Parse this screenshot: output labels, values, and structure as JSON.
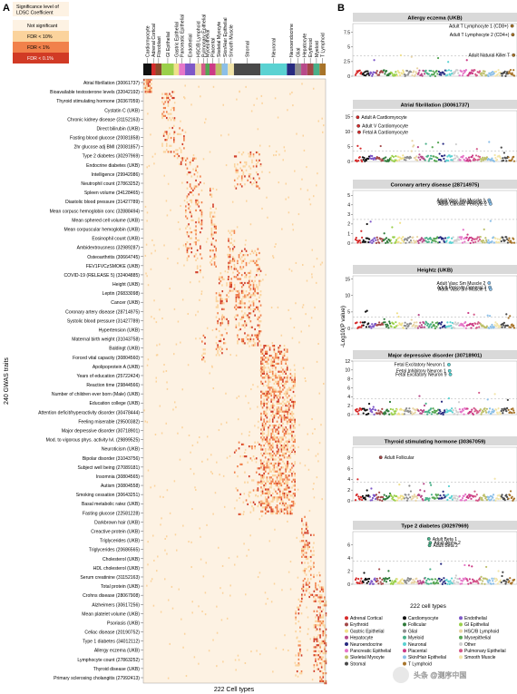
{
  "panel_a_label": "A",
  "panel_b_label": "B",
  "legend": {
    "title": [
      "Significance level of",
      "LDSC Coefficient"
    ],
    "items": [
      {
        "label": "Not significant",
        "color": "#fdf2e3"
      },
      {
        "label": "FDR < 10%",
        "color": "#fbd39c"
      },
      {
        "label": "FDR < 1%",
        "color": "#f1814b"
      },
      {
        "label": "FDR < 0.1%",
        "color": "#d13a25"
      }
    ]
  },
  "heatmap": {
    "ylabel": "240 GWAS traits",
    "xlabel": "222 Cell types",
    "traits": [
      "Atrial fibrillation (30061737)",
      "Bioavailable testosterone levels (32042192)",
      "Thyroid stimulating hormone (30367059)",
      "Cystatin C (UKB)",
      "Chronic kidney disease (31152163)",
      "Direct bilirubin (UKB)",
      "Fasting blood glucose (20081858)",
      "2hr glucose adj BMI (20081857)",
      "Type 2 diabetes (30297969)",
      "Endocrine diabetes (UKB)",
      "Intelligence (29942086)",
      "Neutrophil count (27863252)",
      "Spleen volume (34128465)",
      "Diastolic blood pressure (31427789)",
      "Mean corpusc hemoglobin conc (32888494)",
      "Mean sphered cell volume (UKB)",
      "Mean corpuscular hemoglobin (UKB)",
      "Eosinophil count (UKB)",
      "Ambidextrousness (32989287)",
      "Osteoarthritis (30664745)",
      "FEV1FVCzSMOKE (UKB)",
      "COVID-19 (RELEASE 5) (32404885)",
      "Height (UKB)",
      "Leptin (26833098)",
      "Cancer (UKB)",
      "Coronary artery disease (28714975)",
      "Systolic blood pressure (31427789)",
      "Hypertension (UKB)",
      "Maternal birth weight (31043758)",
      "Baldingt (UKB)",
      "Forced vital capacity (30804560)",
      "Apolipoprotein A (UKB)",
      "Years of education (25722424)",
      "Reaction time (29844566)",
      "Number of children ever born (Male) (UKB)",
      "Education college (UKB)",
      "Attention deficit/hyperactivity disorder (30478444)",
      "Feeling miserable (29500382)",
      "Major depressive disorder (30718901)",
      "Mod. to vigorous phys. activity lvl. (29899525)",
      "Neuroticism (UKB)",
      "Bipolar disorder (31043756)",
      "Subject well being (27089181)",
      "Insomnia (30804565)",
      "Autism (30804558)",
      "Smoking cessation (30643251)",
      "Basal metabolic ratez (UKB)",
      "Fasting glucose (22581228)",
      "Darkbrown hair (UKB)",
      "Creactive protein (UKB)",
      "Triglycerides (UKB)",
      "Triglycerides (20686565)",
      "Cholesterol (UKB)",
      "HDL cholesterol (UKB)",
      "Serum creatinine (31152163)",
      "Total protein (UKB)",
      "Crohns disease (28067908)",
      "Alzheimers (30617256)",
      "Mean platelet volume (UKB)",
      "Psoriasis (UKB)",
      "Celiac disease (20190752)",
      "Type 1 diabetes (34012112)",
      "Allergy eczema (UKB)",
      "Lymphocyte count (27863252)",
      "Thyroid disease (UKB)",
      "Primary sclerosing cholangitis (27992413)"
    ],
    "categories": [
      {
        "name": "Cardiomyocyte",
        "color": "#111111"
      },
      {
        "name": "Adrenal Cortical",
        "color": "#d62b2b"
      },
      {
        "name": "Fibroblast",
        "color": "#8b4a2b"
      },
      {
        "name": "GI Epithelial",
        "color": "#9ad04a"
      },
      {
        "name": "Gastric Epithelial",
        "color": "#f0e08a"
      },
      {
        "name": "Pancreatic Epithelial",
        "color": "#e676c8"
      },
      {
        "name": "Endothelial",
        "color": "#7e58c8"
      },
      {
        "name": "HSC/B Lymphoid",
        "color": "#e8d4a4"
      },
      {
        "name": "Pulmonary Epithelial",
        "color": "#d45a8a"
      },
      {
        "name": "Myoepithelial",
        "color": "#55a653"
      },
      {
        "name": "Placental",
        "color": "#cc3a86"
      },
      {
        "name": "Skeletal Myocyte",
        "color": "#bdbf6a"
      },
      {
        "name": "Skin/Hair Epithelial",
        "color": "#8bbfe8"
      },
      {
        "name": "Smooth Muscle",
        "color": "#f2e4a8"
      },
      {
        "name": "Stromal",
        "color": "#494949"
      },
      {
        "name": "Neuronal",
        "color": "#5ad2d2"
      },
      {
        "name": "Neuroendocrine",
        "color": "#272a80"
      },
      {
        "name": "Glial",
        "color": "#8e8e8e"
      },
      {
        "name": "Hepatocyte",
        "color": "#b84a8a"
      },
      {
        "name": "Erythroid",
        "color": "#a34848"
      },
      {
        "name": "Myeloid",
        "color": "#4ab089"
      },
      {
        "name": "T Lymphoid",
        "color": "#a8742a"
      }
    ]
  },
  "chart_data": [
    {
      "panel": "Allergy eczema (UKB)",
      "ylim": [
        0,
        9
      ],
      "yticks": [
        0,
        2.5,
        5,
        7.5
      ],
      "annotations": [
        "Adult T Lymphocyte 1 (CD8+)",
        "Adult T Lymphocyte 2 (CD4+)",
        "Adult Natural Killer T"
      ],
      "highlight_points": [
        {
          "x": 218,
          "y": 8.6
        },
        {
          "x": 219,
          "y": 7.1
        },
        {
          "x": 220,
          "y": 3.6
        }
      ]
    },
    {
      "panel": "Atrial fibrillation (30061737)",
      "ylim": [
        0,
        17
      ],
      "yticks": [
        0,
        5,
        10,
        15
      ],
      "annotations": [
        "Adult A Cardiomyocyte",
        "Adult V Cardiomyocyte",
        "Fetal A Cardiomyocyte"
      ],
      "highlight_points": [
        {
          "x": 3,
          "y": 14.8
        },
        {
          "x": 4,
          "y": 11.9
        },
        {
          "x": 5,
          "y": 9.8
        }
      ]
    },
    {
      "panel": "Coronary artery disease (28714975)",
      "ylim": [
        0,
        5.5
      ],
      "yticks": [
        0,
        1,
        2,
        3,
        4,
        5
      ],
      "annotations": [
        "Adult Vasc Sm Muscle 1",
        "Adult Vasc Sm Muscle 2",
        "Adult Cardiac Pericyte 2"
      ],
      "highlight_points": [
        {
          "x": 186,
          "y": 4.5
        },
        {
          "x": 187,
          "y": 4.3
        },
        {
          "x": 188,
          "y": 4.1
        }
      ]
    },
    {
      "panel": "Heightz (UKB)",
      "ylim": [
        0,
        16
      ],
      "yticks": [
        0,
        5,
        10,
        15
      ],
      "annotations": [
        "Adult Vasc Sm Muscle 2",
        "Adult Pericyte General 3",
        "Adult Vasc Sm Muscle 1"
      ],
      "highlight_points": [
        {
          "x": 186,
          "y": 13.8
        },
        {
          "x": 187,
          "y": 12.5
        },
        {
          "x": 188,
          "y": 11.9
        }
      ]
    },
    {
      "panel": "Major depressive disorder (30718901)",
      "ylim": [
        0,
        12
      ],
      "yticks": [
        0,
        2,
        4,
        6,
        8,
        10,
        12
      ],
      "annotations": [
        "Fetal Excitatory Neuron 1",
        "Fetal Inhibitory Neuron 1",
        "Fetal Excitatory Neuron 9"
      ],
      "highlight_points": [
        {
          "x": 130,
          "y": 11.2
        },
        {
          "x": 131,
          "y": 9.8
        },
        {
          "x": 132,
          "y": 9.0
        }
      ]
    },
    {
      "panel": "Thyroid stimulating hormone (30367059)",
      "ylim": [
        0,
        10
      ],
      "yticks": [
        0,
        2,
        4,
        6,
        8
      ],
      "annotations": [
        "Adult Follicular"
      ],
      "highlight_points": [
        {
          "x": 35,
          "y": 8.1
        }
      ]
    },
    {
      "panel": "Type 2 diabetes (30297969)",
      "ylim": [
        0,
        8
      ],
      "yticks": [
        0,
        2,
        4,
        6
      ],
      "annotations": [
        "Adult Beta 1",
        "Adult Alpha 2",
        "Adult Beta 2"
      ],
      "highlight_points": [
        {
          "x": 102,
          "y": 6.9
        },
        {
          "x": 104,
          "y": 6.3
        },
        {
          "x": 103,
          "y": 5.9
        }
      ]
    }
  ],
  "panel_b": {
    "ylabel": "-Log10(P value)",
    "xlabel": "222 cell types",
    "legend": [
      {
        "name": "Adrenal Cortical",
        "color": "#d62b2b"
      },
      {
        "name": "Cardiomyocyte",
        "color": "#111111"
      },
      {
        "name": "Endothelial",
        "color": "#7e58c8"
      },
      {
        "name": "Erythroid",
        "color": "#a34848"
      },
      {
        "name": "Follicular",
        "color": "#2f7a3a"
      },
      {
        "name": "GI Epithelial",
        "color": "#9ad04a"
      },
      {
        "name": "Gastric Epithelial",
        "color": "#f0e08a"
      },
      {
        "name": "Glial",
        "color": "#8e8e8e"
      },
      {
        "name": "HSC/B Lymphoid",
        "color": "#e8d4a4"
      },
      {
        "name": "Hepatocyte",
        "color": "#b84a8a"
      },
      {
        "name": "Myeloid",
        "color": "#4ab089"
      },
      {
        "name": "Myoepithelial",
        "color": "#55a653"
      },
      {
        "name": "Neuroendocrine",
        "color": "#272a80"
      },
      {
        "name": "Neuronal",
        "color": "#5ad2d2"
      },
      {
        "name": "Other",
        "color": "#cfcfcf"
      },
      {
        "name": "Pancreatic Epithelial",
        "color": "#e676c8"
      },
      {
        "name": "Placental",
        "color": "#cc3a86"
      },
      {
        "name": "Pulmonary Epithelial",
        "color": "#d45a8a"
      },
      {
        "name": "Skeletal Myocyte",
        "color": "#bdbf6a"
      },
      {
        "name": "Skin/Hair Epithelial",
        "color": "#8bbfe8"
      },
      {
        "name": "Smooth Muscle",
        "color": "#f2e4a8"
      },
      {
        "name": "Stromal",
        "color": "#494949"
      },
      {
        "name": "T Lymphoid",
        "color": "#a8742a"
      }
    ]
  },
  "watermark": "头条 @测序中国"
}
